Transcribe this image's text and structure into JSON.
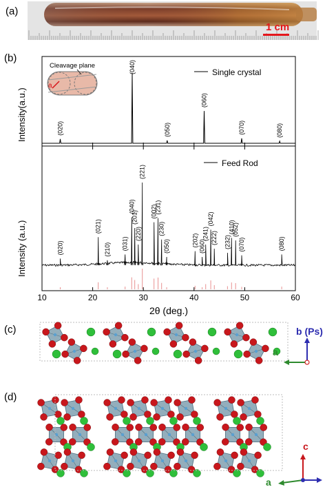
{
  "panels": {
    "a": {
      "label": "(a)",
      "scale_bar": "1 cm"
    },
    "b": {
      "label": "(b)"
    },
    "c": {
      "label": "(c)"
    },
    "d": {
      "label": "(d)"
    }
  },
  "chart_data": [
    {
      "type": "line",
      "legend": "Single crystal",
      "ylabel": "Intensity(a.u.)",
      "inset_label": "Cleavage plane",
      "inset_axis": "a",
      "xlim": [
        10,
        60
      ],
      "peaks": [
        {
          "x": 13.6,
          "h": 0.06,
          "label": "(020)"
        },
        {
          "x": 27.8,
          "h": 1.0,
          "label": "(040)"
        },
        {
          "x": 34.7,
          "h": 0.04,
          "label": "(050)"
        },
        {
          "x": 42.0,
          "h": 0.46,
          "label": "(060)"
        },
        {
          "x": 49.4,
          "h": 0.07,
          "label": "(070)"
        },
        {
          "x": 56.9,
          "h": 0.03,
          "label": "(080)"
        }
      ]
    },
    {
      "type": "line",
      "legend": "Feed Rod",
      "ylabel": "Intensity (a.u.)",
      "xlabel": "2θ (deg.)",
      "xlim": [
        10,
        60
      ],
      "xticks": [
        10,
        20,
        30,
        40,
        50,
        60
      ],
      "peaks": [
        {
          "x": 13.6,
          "h": 0.08,
          "label": "(020)"
        },
        {
          "x": 21.1,
          "h": 0.34,
          "label": "(021)"
        },
        {
          "x": 22.9,
          "h": 0.06,
          "label": "(210)"
        },
        {
          "x": 26.4,
          "h": 0.13,
          "label": "(031)"
        },
        {
          "x": 27.7,
          "h": 0.58,
          "label": "(040)"
        },
        {
          "x": 28.3,
          "h": 0.45,
          "label": "(201)"
        },
        {
          "x": 29.0,
          "h": 0.25,
          "label": "(220)"
        },
        {
          "x": 29.8,
          "h": 1.0,
          "label": "(221)"
        },
        {
          "x": 32.1,
          "h": 0.52,
          "label": "(002)"
        },
        {
          "x": 32.9,
          "h": 0.57,
          "label": "(231)"
        },
        {
          "x": 33.6,
          "h": 0.31,
          "label": "(230)"
        },
        {
          "x": 34.6,
          "h": 0.1,
          "label": "(050)"
        },
        {
          "x": 40.2,
          "h": 0.17,
          "label": "(202)"
        },
        {
          "x": 41.6,
          "h": 0.1,
          "label": "(060)"
        },
        {
          "x": 42.3,
          "h": 0.25,
          "label": "(241)"
        },
        {
          "x": 43.3,
          "h": 0.43,
          "label": "(042)"
        },
        {
          "x": 44.0,
          "h": 0.2,
          "label": "(222)"
        },
        {
          "x": 46.6,
          "h": 0.15,
          "label": "(232)"
        },
        {
          "x": 47.4,
          "h": 0.33,
          "label": "(410)"
        },
        {
          "x": 48.2,
          "h": 0.3,
          "label": "(052)"
        },
        {
          "x": 49.4,
          "h": 0.12,
          "label": "(070)"
        },
        {
          "x": 57.3,
          "h": 0.13,
          "label": "(080)"
        }
      ]
    }
  ],
  "structure_c": {
    "axis_b": "b (Ps)",
    "axis_a": "a"
  },
  "structure_d": {
    "axis_c": "c",
    "axis_a": "a"
  },
  "colors": {
    "oxygen": "#c8171c",
    "cation": "#2fbf3a",
    "polyhedron": "#6f93a5",
    "reference_sticks": "#e89090",
    "scale_bar": "#e5161b"
  }
}
